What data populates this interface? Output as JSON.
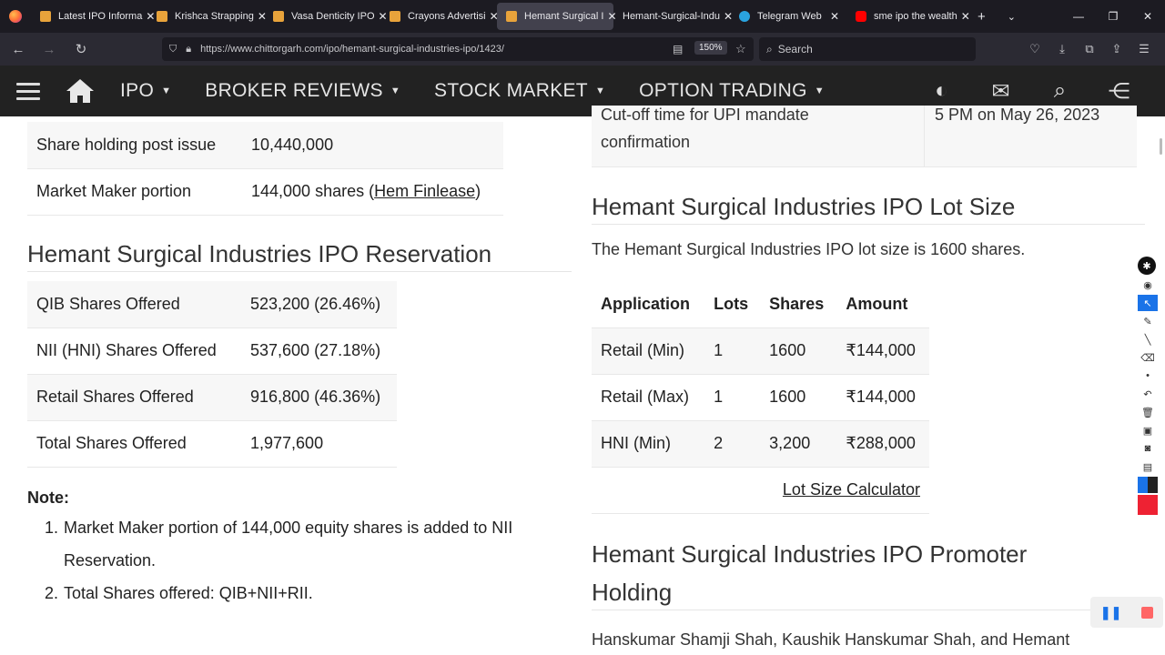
{
  "browser": {
    "tabs": [
      {
        "title": "Latest IPO Informa",
        "icon": "chittorgarh-favicon-icon"
      },
      {
        "title": "Krishca Strapping",
        "icon": "chittorgarh-favicon-icon"
      },
      {
        "title": "Vasa Denticity IPO",
        "icon": "chittorgarh-favicon-icon"
      },
      {
        "title": "Crayons Advertisi",
        "icon": "chittorgarh-favicon-icon"
      },
      {
        "title": "Hemant Surgical I",
        "icon": "chittorgarh-favicon-icon",
        "active": true
      },
      {
        "title": "Hemant-Surgical-Indu",
        "icon": "none"
      },
      {
        "title": "Telegram Web",
        "icon": "telegram-icon"
      },
      {
        "title": "sme ipo the wealth",
        "icon": "youtube-icon"
      }
    ],
    "url": "https://www.chittorgarh.com/ipo/hemant-surgical-industries-ipo/1423/",
    "zoom": "150%",
    "search_placeholder": "Search"
  },
  "site_nav": {
    "items": [
      {
        "label": "IPO"
      },
      {
        "label": "BROKER REVIEWS"
      },
      {
        "label": "STOCK MARKET"
      },
      {
        "label": "OPTION TRADING"
      }
    ]
  },
  "left": {
    "top_table": [
      {
        "label": "Share holding post issue",
        "value": "10,440,000"
      },
      {
        "label": "Market Maker portion",
        "value_prefix": "144,000 shares (",
        "value_link": "Hem Finlease",
        "value_suffix": ")"
      }
    ],
    "reservation_title": "Hemant Surgical Industries IPO Reservation",
    "reservation": [
      {
        "label": "QIB Shares Offered",
        "value": "523,200 (26.46%)"
      },
      {
        "label": "NII (HNI) Shares Offered",
        "value": "537,600 (27.18%)"
      },
      {
        "label": "Retail Shares Offered",
        "value": "916,800 (46.36%)"
      },
      {
        "label": "Total Shares Offered",
        "value": "1,977,600"
      }
    ],
    "note_title": "Note:",
    "notes": [
      {
        "num": "1.",
        "text_line1": "Market Maker portion of 144,000 equity shares is added to NII",
        "text_line2": "Reservation."
      },
      {
        "num": "2.",
        "text_line1": "Total Shares offered: QIB+NII+RII.",
        "text_line2": ""
      }
    ]
  },
  "right": {
    "cutoff_label_line1": "Cut-off time for UPI mandate",
    "cutoff_label_line2": "confirmation",
    "cutoff_value": "5 PM on May 26, 2023",
    "lot_title": "Hemant Surgical Industries IPO Lot Size",
    "lot_text": "The Hemant Surgical Industries IPO lot size is 1600 shares.",
    "lot_headers": [
      "Application",
      "Lots",
      "Shares",
      "Amount"
    ],
    "lot_rows": [
      [
        "Retail (Min)",
        "1",
        "1600",
        "₹144,000"
      ],
      [
        "Retail (Max)",
        "1",
        "1600",
        "₹144,000"
      ],
      [
        "HNI (Min)",
        "2",
        "3,200",
        "₹288,000"
      ]
    ],
    "lot_calc_link": "Lot Size Calculator",
    "promoter_title_line1": "Hemant Surgical Industries IPO Promoter",
    "promoter_title_line2": "Holding",
    "promoter_text": "Hanskumar Shamji Shah, Kaushik Hanskumar Shah, and Hemant"
  }
}
